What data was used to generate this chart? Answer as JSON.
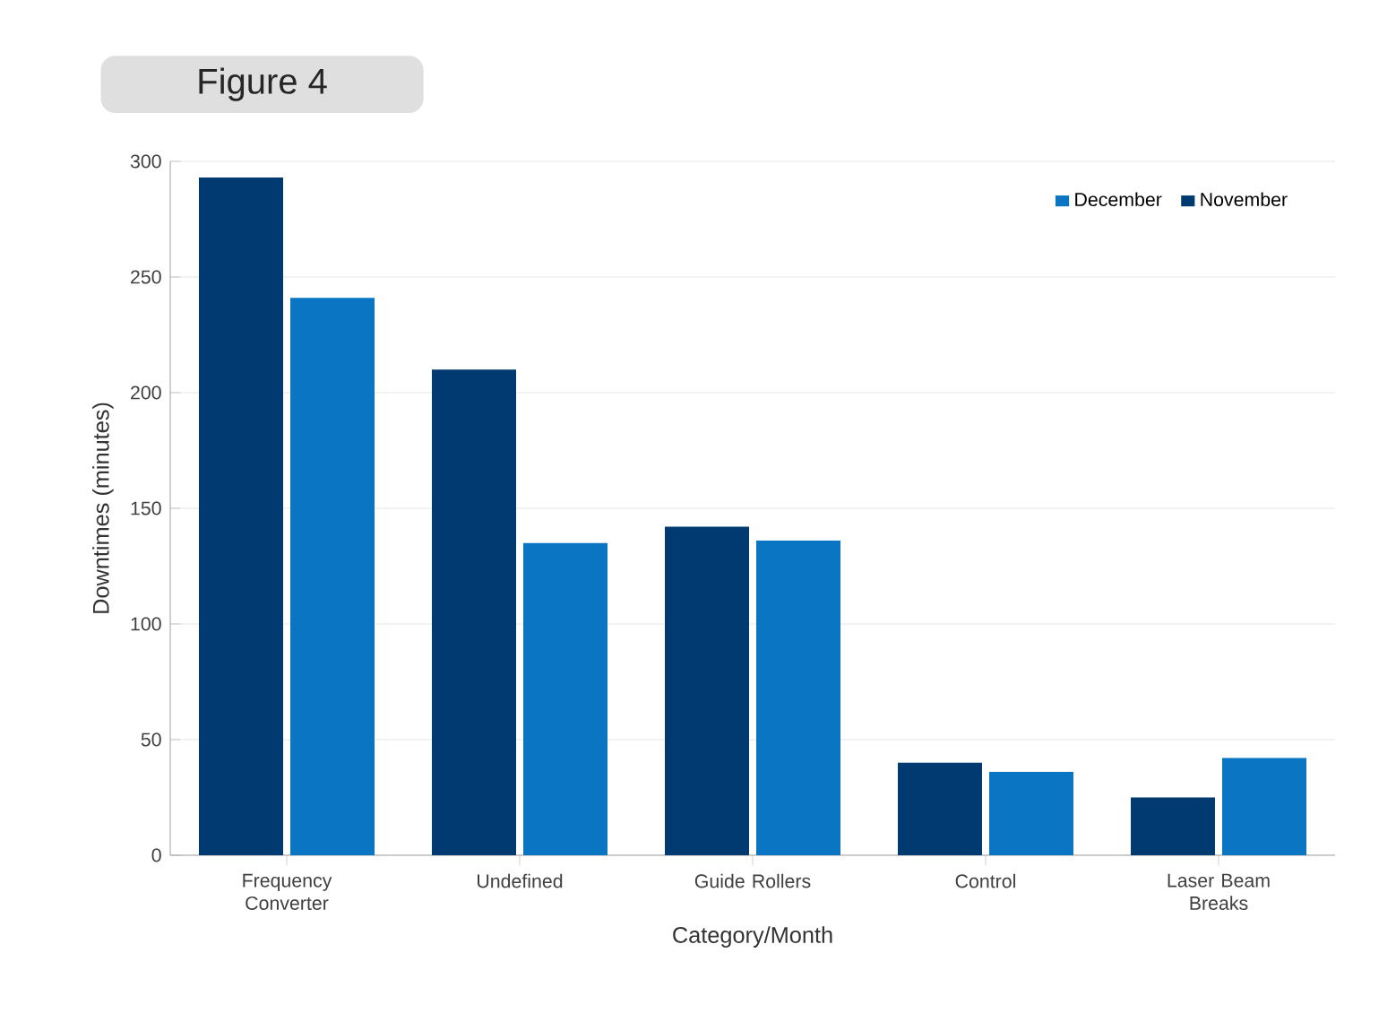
{
  "chart_data": {
    "type": "bar",
    "title": "Figure 4",
    "xlabel": "Category/Month",
    "ylabel": "Downtimes (minutes)",
    "categories": [
      "Frequency Converter",
      "Undefined",
      "Guide Rollers",
      "Control",
      "Laser Beam Breaks"
    ],
    "series": [
      {
        "name": "November",
        "color": "#003a70",
        "values": [
          293,
          210,
          142,
          40,
          25
        ]
      },
      {
        "name": "December",
        "color": "#0a75c2",
        "values": [
          241,
          135,
          136,
          36,
          42
        ]
      }
    ],
    "ylim": [
      0,
      300
    ],
    "yticks": [
      0,
      50,
      100,
      150,
      200,
      250,
      300
    ],
    "grid": "y",
    "legend": "top right"
  }
}
